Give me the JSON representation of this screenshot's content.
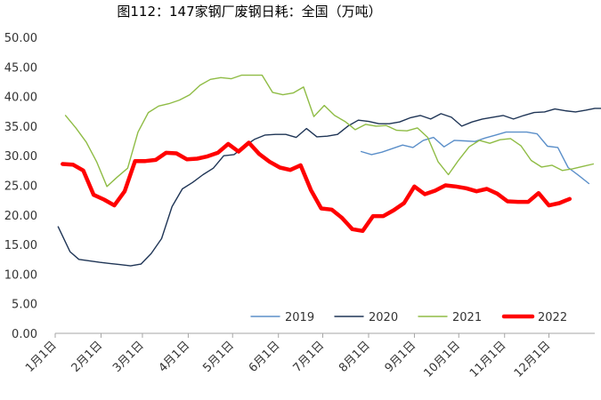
{
  "chart_data": {
    "type": "line",
    "title": "图112：147家钢厂废钢日耗：全国（万吨）",
    "xlabel": "",
    "ylabel": "",
    "x_domain": [
      1,
      366
    ],
    "ylim": [
      0,
      50
    ],
    "y_ticks": [
      0,
      5,
      10,
      15,
      20,
      25,
      30,
      35,
      40,
      45,
      50
    ],
    "y_tick_labels": [
      "0.00",
      "5.00",
      "10.00",
      "15.00",
      "20.00",
      "25.00",
      "30.00",
      "35.00",
      "40.00",
      "45.00",
      "50.00"
    ],
    "x_ticks": [
      {
        "label": "1月1日",
        "day": 1
      },
      {
        "label": "2月1日",
        "day": 32
      },
      {
        "label": "3月1日",
        "day": 60
      },
      {
        "label": "4月1日",
        "day": 91
      },
      {
        "label": "5月1日",
        "day": 121
      },
      {
        "label": "6月1日",
        "day": 152
      },
      {
        "label": "7月1日",
        "day": 182
      },
      {
        "label": "8月1日",
        "day": 213
      },
      {
        "label": "9月1日",
        "day": 244
      },
      {
        "label": "10月1日",
        "day": 274
      },
      {
        "label": "11月1日",
        "day": 305
      },
      {
        "label": "12月1日",
        "day": 335
      }
    ],
    "grid": false,
    "legend_position": "bottom-right",
    "series": [
      {
        "name": "2019",
        "color": "#5b8fc9",
        "width": 1.4,
        "points": [
          [
            208,
            30.7
          ],
          [
            215,
            30.2
          ],
          [
            222,
            30.6
          ],
          [
            229,
            31.2
          ],
          [
            236,
            31.8
          ],
          [
            243,
            31.4
          ],
          [
            250,
            32.6
          ],
          [
            257,
            33.1
          ],
          [
            264,
            31.5
          ],
          [
            271,
            32.6
          ],
          [
            278,
            32.5
          ],
          [
            285,
            32.4
          ],
          [
            292,
            33.0
          ],
          [
            299,
            33.5
          ],
          [
            306,
            34.0
          ],
          [
            313,
            34.0
          ],
          [
            320,
            34.0
          ],
          [
            327,
            33.7
          ],
          [
            334,
            31.6
          ],
          [
            341,
            31.4
          ],
          [
            348,
            28.0
          ],
          [
            355,
            26.7
          ],
          [
            362,
            25.3
          ]
        ]
      },
      {
        "name": "2020",
        "color": "#1f3556",
        "width": 1.4,
        "points": [
          [
            3,
            18.0
          ],
          [
            11,
            13.8
          ],
          [
            17,
            12.5
          ],
          [
            31,
            12.0
          ],
          [
            38,
            11.8
          ],
          [
            45,
            11.6
          ],
          [
            52,
            11.4
          ],
          [
            59,
            11.7
          ],
          [
            66,
            13.5
          ],
          [
            73,
            16.0
          ],
          [
            80,
            21.4
          ],
          [
            87,
            24.4
          ],
          [
            94,
            25.5
          ],
          [
            101,
            26.8
          ],
          [
            108,
            27.9
          ],
          [
            115,
            30.0
          ],
          [
            122,
            30.2
          ],
          [
            129,
            31.6
          ],
          [
            136,
            32.8
          ],
          [
            143,
            33.5
          ],
          [
            150,
            33.6
          ],
          [
            157,
            33.6
          ],
          [
            164,
            33.1
          ],
          [
            171,
            34.6
          ],
          [
            178,
            33.2
          ],
          [
            185,
            33.3
          ],
          [
            192,
            33.6
          ],
          [
            199,
            35.0
          ],
          [
            206,
            36.0
          ],
          [
            213,
            35.8
          ],
          [
            220,
            35.4
          ],
          [
            227,
            35.4
          ],
          [
            234,
            35.7
          ],
          [
            241,
            36.4
          ],
          [
            248,
            36.8
          ],
          [
            255,
            36.2
          ],
          [
            262,
            37.1
          ],
          [
            269,
            36.5
          ],
          [
            276,
            35.0
          ],
          [
            283,
            35.7
          ],
          [
            290,
            36.2
          ],
          [
            297,
            36.5
          ],
          [
            304,
            36.8
          ],
          [
            311,
            36.2
          ],
          [
            318,
            36.8
          ],
          [
            325,
            37.3
          ],
          [
            332,
            37.4
          ],
          [
            339,
            37.9
          ],
          [
            346,
            37.6
          ],
          [
            353,
            37.4
          ],
          [
            360,
            37.7
          ],
          [
            366,
            38.0
          ],
          [
            372,
            38.0
          ]
        ]
      },
      {
        "name": "2021",
        "color": "#8fbc45",
        "width": 1.4,
        "points": [
          [
            8,
            36.8
          ],
          [
            15,
            34.7
          ],
          [
            22,
            32.3
          ],
          [
            29,
            29.0
          ],
          [
            36,
            24.8
          ],
          [
            43,
            26.4
          ],
          [
            50,
            27.9
          ],
          [
            57,
            34.0
          ],
          [
            64,
            37.3
          ],
          [
            71,
            38.4
          ],
          [
            78,
            38.8
          ],
          [
            85,
            39.4
          ],
          [
            92,
            40.3
          ],
          [
            99,
            41.9
          ],
          [
            106,
            42.9
          ],
          [
            113,
            43.2
          ],
          [
            120,
            43.0
          ],
          [
            127,
            43.6
          ],
          [
            134,
            43.6
          ],
          [
            141,
            43.6
          ],
          [
            148,
            40.7
          ],
          [
            155,
            40.3
          ],
          [
            162,
            40.6
          ],
          [
            169,
            41.6
          ],
          [
            176,
            36.6
          ],
          [
            183,
            38.5
          ],
          [
            190,
            36.8
          ],
          [
            197,
            35.8
          ],
          [
            204,
            34.4
          ],
          [
            211,
            35.3
          ],
          [
            218,
            35.0
          ],
          [
            225,
            35.1
          ],
          [
            232,
            34.3
          ],
          [
            239,
            34.2
          ],
          [
            246,
            34.7
          ],
          [
            253,
            33.1
          ],
          [
            260,
            29.0
          ],
          [
            267,
            26.8
          ],
          [
            274,
            29.3
          ],
          [
            281,
            31.5
          ],
          [
            288,
            32.6
          ],
          [
            295,
            32.1
          ],
          [
            302,
            32.7
          ],
          [
            309,
            32.9
          ],
          [
            316,
            31.7
          ],
          [
            323,
            29.2
          ],
          [
            330,
            28.1
          ],
          [
            337,
            28.4
          ],
          [
            344,
            27.5
          ],
          [
            351,
            27.8
          ],
          [
            358,
            28.2
          ],
          [
            365,
            28.6
          ]
        ]
      },
      {
        "name": "2022",
        "color": "#ff0000",
        "width": 4.5,
        "points": [
          [
            6,
            28.6
          ],
          [
            13,
            28.5
          ],
          [
            20,
            27.5
          ],
          [
            27,
            23.4
          ],
          [
            34,
            22.6
          ],
          [
            41,
            21.6
          ],
          [
            48,
            24.0
          ],
          [
            55,
            29.1
          ],
          [
            62,
            29.1
          ],
          [
            69,
            29.3
          ],
          [
            76,
            30.5
          ],
          [
            83,
            30.4
          ],
          [
            90,
            29.4
          ],
          [
            97,
            29.5
          ],
          [
            104,
            29.9
          ],
          [
            111,
            30.5
          ],
          [
            118,
            32.0
          ],
          [
            125,
            30.7
          ],
          [
            132,
            32.2
          ],
          [
            139,
            30.3
          ],
          [
            146,
            29.0
          ],
          [
            153,
            28.0
          ],
          [
            160,
            27.6
          ],
          [
            167,
            28.4
          ],
          [
            174,
            24.2
          ],
          [
            181,
            21.1
          ],
          [
            188,
            20.9
          ],
          [
            195,
            19.5
          ],
          [
            202,
            17.6
          ],
          [
            209,
            17.3
          ],
          [
            216,
            19.8
          ],
          [
            223,
            19.8
          ],
          [
            230,
            20.8
          ],
          [
            237,
            22.0
          ],
          [
            244,
            24.8
          ],
          [
            251,
            23.5
          ],
          [
            258,
            24.1
          ],
          [
            265,
            25.0
          ],
          [
            272,
            24.8
          ],
          [
            279,
            24.5
          ],
          [
            286,
            24.0
          ],
          [
            293,
            24.4
          ],
          [
            300,
            23.6
          ],
          [
            307,
            22.3
          ],
          [
            314,
            22.2
          ],
          [
            321,
            22.2
          ],
          [
            328,
            23.7
          ],
          [
            335,
            21.6
          ],
          [
            342,
            22.0
          ],
          [
            349,
            22.7
          ]
        ]
      }
    ]
  }
}
